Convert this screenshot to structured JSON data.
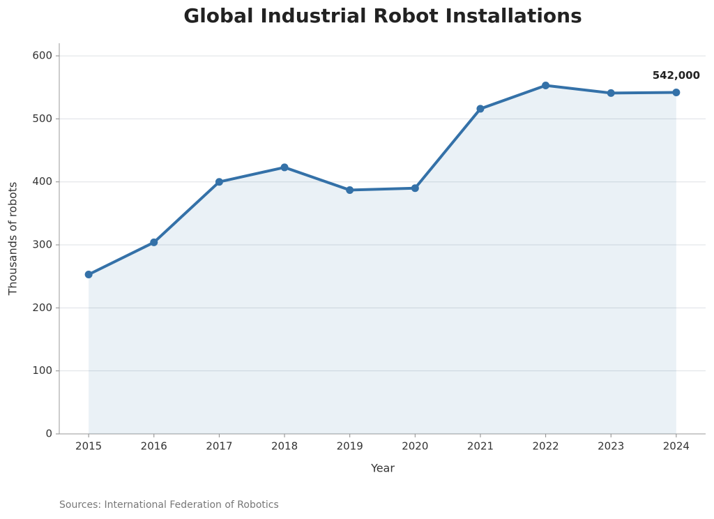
{
  "chart_data": {
    "type": "line",
    "title": "Global Industrial Robot Installations",
    "x": [
      2015,
      2016,
      2017,
      2018,
      2019,
      2020,
      2021,
      2022,
      2023,
      2024
    ],
    "values": [
      253,
      304,
      400,
      423,
      387,
      390,
      516,
      553,
      541,
      542
    ],
    "value_labels": [
      null,
      null,
      null,
      null,
      null,
      null,
      null,
      null,
      null,
      "542,000"
    ],
    "color": "#3471a8",
    "area": true,
    "xlabel": "Year",
    "ylabel": "Thousands of robots",
    "xlim": [
      2014.55,
      2024.45
    ],
    "xticks": [
      2015,
      2016,
      2017,
      2018,
      2019,
      2020,
      2021,
      2022,
      2023,
      2024
    ],
    "ylim": [
      0,
      620
    ],
    "yticks": [
      0,
      100,
      200,
      300,
      400,
      500,
      600
    ],
    "grid": true,
    "source": "Sources: International Federation of Robotics"
  }
}
